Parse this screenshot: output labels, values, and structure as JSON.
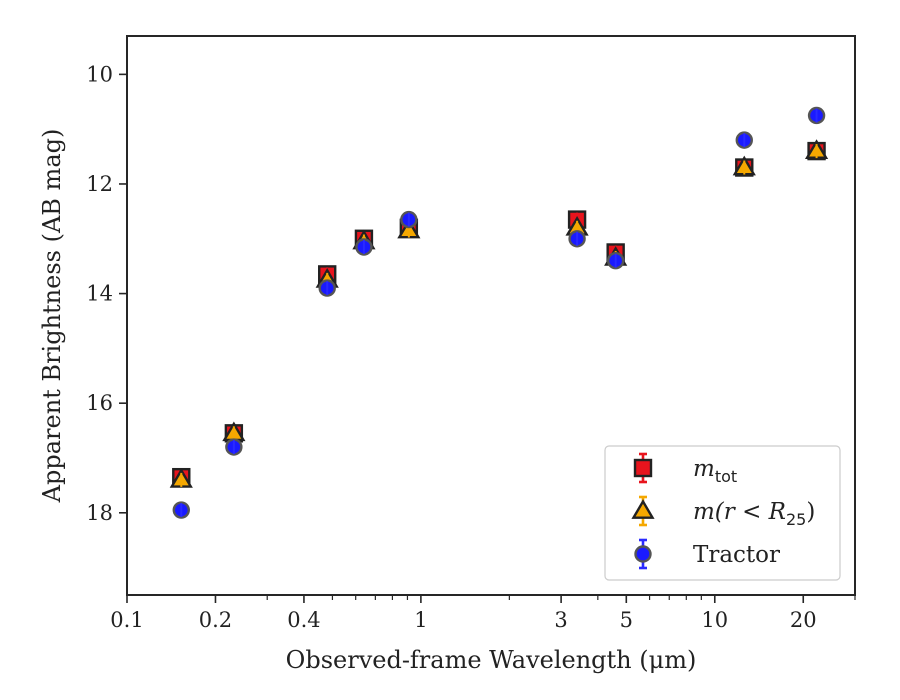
{
  "chart_data": {
    "type": "scatter",
    "title": "",
    "xlabel": "Observed-frame Wavelength (μm)",
    "ylabel": "Apparent Brightness (AB mag)",
    "xscale": "log",
    "xlim": [
      0.1,
      30
    ],
    "ylim": [
      19.5,
      9.3
    ],
    "y_inverted": true,
    "xticks": [
      {
        "value": 0.1,
        "label": "0.1"
      },
      {
        "value": 0.2,
        "label": "0.2"
      },
      {
        "value": 0.4,
        "label": "0.4"
      },
      {
        "value": 1,
        "label": "1"
      },
      {
        "value": 3,
        "label": "3"
      },
      {
        "value": 5,
        "label": "5"
      },
      {
        "value": 10,
        "label": "10"
      },
      {
        "value": 20,
        "label": "20"
      }
    ],
    "xminor": [
      0.3,
      0.5,
      0.6,
      0.7,
      0.8,
      0.9,
      2,
      4,
      6,
      7,
      8,
      9,
      30
    ],
    "yticks": [
      {
        "value": 10,
        "label": "10"
      },
      {
        "value": 12,
        "label": "12"
      },
      {
        "value": 14,
        "label": "14"
      },
      {
        "value": 16,
        "label": "16"
      },
      {
        "value": 18,
        "label": "18"
      }
    ],
    "grid": false,
    "legend_position": "lower right",
    "series": [
      {
        "name": "m_tot",
        "legend_main": "m",
        "legend_sub": "tot",
        "legend_rest": "",
        "marker": "square",
        "color": "#e8141d",
        "errcolor": "#e8141d",
        "x": [
          0.153,
          0.231,
          0.48,
          0.64,
          0.91,
          3.4,
          4.6,
          12.6,
          22.2
        ],
        "y": [
          17.35,
          16.55,
          13.65,
          13.0,
          12.8,
          12.65,
          13.25,
          11.7,
          11.4
        ]
      },
      {
        "name": "m(r < R25)",
        "legend_main": "m(r < R",
        "legend_sub": "25",
        "legend_rest": ")",
        "marker": "triangle",
        "color": "#f5a800",
        "errcolor": "#f5a800",
        "x": [
          0.153,
          0.231,
          0.48,
          0.64,
          0.91,
          3.4,
          4.6,
          12.6,
          22.2
        ],
        "y": [
          17.4,
          16.55,
          13.75,
          13.05,
          12.85,
          12.8,
          13.35,
          11.7,
          11.4
        ]
      },
      {
        "name": "Tractor",
        "legend_main": "Tractor",
        "legend_sub": "",
        "legend_rest": "",
        "marker": "circle",
        "color": "#1a1aff",
        "errcolor": "#2a2aff",
        "x": [
          0.153,
          0.231,
          0.48,
          0.64,
          0.91,
          3.4,
          4.6,
          12.6,
          22.2
        ],
        "y": [
          17.95,
          16.8,
          13.9,
          13.15,
          12.65,
          13.0,
          13.4,
          11.2,
          10.75
        ]
      }
    ]
  }
}
